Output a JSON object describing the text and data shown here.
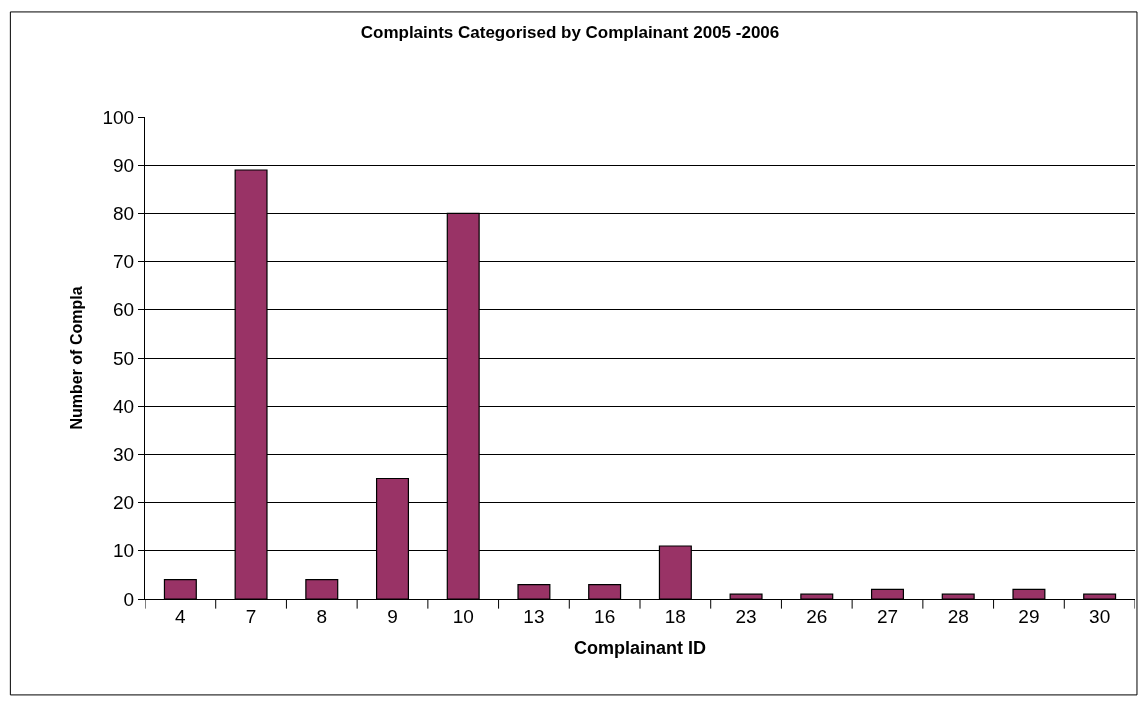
{
  "chart_data": {
    "type": "bar",
    "title": "Complaints Categorised by Complainant 2005 -2006",
    "xlabel": "Complainant ID",
    "ylabel": "Number of Compla",
    "categories": [
      "4",
      "7",
      "8",
      "9",
      "10",
      "13",
      "16",
      "18",
      "23",
      "26",
      "27",
      "28",
      "29",
      "30"
    ],
    "values": [
      4,
      89,
      4,
      25,
      80,
      3,
      3,
      11,
      1,
      1,
      2,
      1,
      2,
      1
    ],
    "color": "#993366",
    "ylim": [
      0,
      100
    ],
    "yticks": [
      0,
      10,
      20,
      30,
      40,
      50,
      60,
      70,
      80,
      90,
      100
    ],
    "grid": "y"
  }
}
